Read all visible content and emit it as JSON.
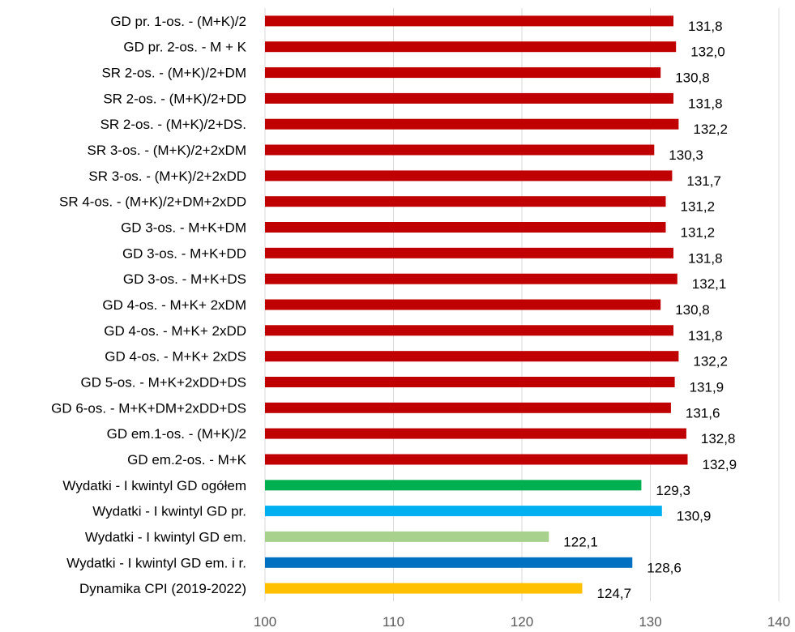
{
  "chart_data": {
    "type": "bar",
    "orientation": "horizontal",
    "categories": [
      "GD pr. 1-os. - (M+K)/2",
      "GD pr. 2-os. - M + K",
      "SR 2-os. - (M+K)/2+DM",
      "SR 2-os. - (M+K)/2+DD",
      "SR 2-os. - (M+K)/2+DS.",
      "SR 3-os. - (M+K)/2+2xDM",
      "SR 3-os. - (M+K)/2+2xDD",
      "SR 4-os. - (M+K)/2+DM+2xDD",
      "GD 3-os. - M+K+DM",
      "GD 3-os. - M+K+DD",
      "GD 3-os. - M+K+DS",
      "GD 4-os. - M+K+ 2xDM",
      "GD 4-os. - M+K+ 2xDD",
      "GD 4-os. - M+K+ 2xDS",
      "GD 5-os. - M+K+2xDD+DS",
      "GD 6-os. - M+K+DM+2xDD+DS",
      "GD em.1-os. - (M+K)/2",
      "GD em.2-os. - M+K",
      "Wydatki - I kwintyl GD ogółem",
      "Wydatki - I kwintyl GD pr.",
      "Wydatki - I kwintyl GD em.",
      "Wydatki - I kwintyl GD em. i r.",
      "Dynamika CPI (2019-2022)"
    ],
    "values": [
      131.8,
      132.0,
      130.8,
      131.8,
      132.2,
      130.3,
      131.7,
      131.2,
      131.2,
      131.8,
      132.1,
      130.8,
      131.8,
      132.2,
      131.9,
      131.6,
      132.8,
      132.9,
      129.3,
      130.9,
      122.1,
      128.6,
      124.7
    ],
    "value_labels": [
      "131,8",
      "132,0",
      "130,8",
      "131,8",
      "132,2",
      "130,3",
      "131,7",
      "131,2",
      "131,2",
      "131,8",
      "132,1",
      "130,8",
      "131,8",
      "132,2",
      "131,9",
      "131,6",
      "132,8",
      "132,9",
      "129,3",
      "130,9",
      "122,1",
      "128,6",
      "124,7"
    ],
    "colors": [
      "#c00000",
      "#c00000",
      "#c00000",
      "#c00000",
      "#c00000",
      "#c00000",
      "#c00000",
      "#c00000",
      "#c00000",
      "#c00000",
      "#c00000",
      "#c00000",
      "#c00000",
      "#c00000",
      "#c00000",
      "#c00000",
      "#c00000",
      "#c00000",
      "#00b050",
      "#00b0f0",
      "#a9d18e",
      "#0070c0",
      "#ffc000"
    ],
    "xlim": [
      100,
      140
    ],
    "xticks": [
      "100",
      "110",
      "120",
      "130",
      "140"
    ],
    "grid": true,
    "title": "",
    "xlabel": "",
    "ylabel": ""
  }
}
